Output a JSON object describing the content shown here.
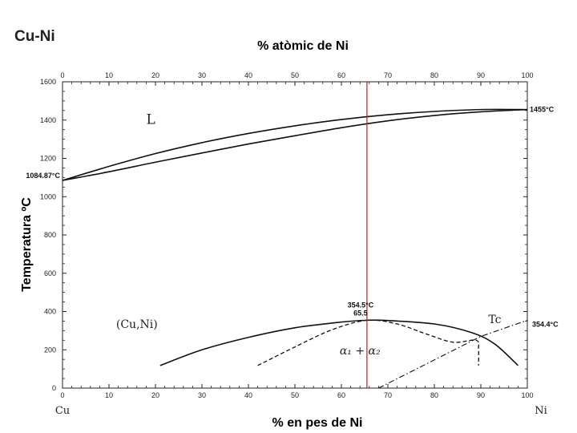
{
  "system_title": "Cu-Ni",
  "chart_data": {
    "type": "line",
    "title": "",
    "xlabel": "% en pes de Ni",
    "x2label": "% atòmic de Ni",
    "ylabel": "Temperatura ºC",
    "xlim": [
      0,
      100
    ],
    "ylim": [
      0,
      1600
    ],
    "x_ticks": [
      "0",
      "10",
      "20",
      "30",
      "40",
      "50",
      "60",
      "70",
      "80",
      "90",
      "100"
    ],
    "y_ticks": [
      "0",
      "200",
      "400",
      "600",
      "800",
      "1000",
      "1200",
      "1400",
      "1600"
    ],
    "x_end_labels": {
      "left": "Cu",
      "right": "Ni"
    },
    "series": [
      {
        "style": "solid",
        "points": [
          [
            0,
            1084.87
          ],
          [
            10,
            1158
          ],
          [
            20,
            1225
          ],
          [
            30,
            1282
          ],
          [
            40,
            1330
          ],
          [
            50,
            1370
          ],
          [
            60,
            1403
          ],
          [
            70,
            1428
          ],
          [
            80,
            1445
          ],
          [
            90,
            1455
          ],
          [
            100,
            1455
          ]
        ]
      },
      {
        "style": "solid",
        "points": [
          [
            0,
            1084.87
          ],
          [
            10,
            1130
          ],
          [
            20,
            1180
          ],
          [
            30,
            1228
          ],
          [
            40,
            1275
          ],
          [
            50,
            1318
          ],
          [
            60,
            1360
          ],
          [
            70,
            1396
          ],
          [
            80,
            1424
          ],
          [
            90,
            1443
          ],
          [
            100,
            1455
          ]
        ]
      },
      {
        "style": "solid",
        "points": [
          [
            21,
            118
          ],
          [
            30,
            200
          ],
          [
            40,
            265
          ],
          [
            50,
            315
          ],
          [
            60,
            345
          ],
          [
            65.5,
            354.5
          ],
          [
            70,
            353
          ],
          [
            80,
            335
          ],
          [
            88,
            290
          ],
          [
            93,
            230
          ],
          [
            98,
            118
          ]
        ]
      },
      {
        "style": "dashed",
        "points": [
          [
            42,
            118
          ],
          [
            50,
            215
          ],
          [
            58,
            305
          ],
          [
            65.5,
            354.5
          ],
          [
            72,
            335
          ],
          [
            78,
            285
          ],
          [
            84,
            240
          ],
          [
            89,
            250
          ],
          [
            89.5,
            200
          ],
          [
            89.5,
            118
          ]
        ]
      },
      {
        "style": "dashdot",
        "points": [
          [
            68,
            0
          ],
          [
            90,
            270
          ],
          [
            100,
            354.4
          ]
        ]
      }
    ],
    "vertical_marker": {
      "x": 65.5,
      "color": "#b22222"
    },
    "annotations": [
      {
        "label": "1084.87°C",
        "x": 0,
        "y": 1084.87
      },
      {
        "label": "1455°C",
        "x": 100,
        "y": 1455
      },
      {
        "label": "354.5°C",
        "x": 65.5,
        "y": 354.5
      },
      {
        "label": "65.5",
        "x": 65.5,
        "y": 354.5
      },
      {
        "label": "354.4°C",
        "x": 100,
        "y": 354.4
      }
    ],
    "regions": [
      "L",
      "(Cu,Ni)",
      "α₁ + α₂",
      "Tc"
    ]
  }
}
